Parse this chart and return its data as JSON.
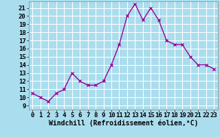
{
  "x": [
    0,
    1,
    2,
    3,
    4,
    5,
    6,
    7,
    8,
    9,
    10,
    11,
    12,
    13,
    14,
    15,
    16,
    17,
    18,
    19,
    20,
    21,
    22,
    23
  ],
  "y": [
    10.5,
    10.0,
    9.5,
    10.5,
    11.0,
    13.0,
    12.0,
    11.5,
    11.5,
    12.0,
    14.0,
    16.5,
    20.0,
    21.5,
    19.5,
    21.0,
    19.5,
    17.0,
    16.5,
    16.5,
    15.0,
    14.0,
    14.0,
    13.5
  ],
  "line_color": "#990099",
  "marker": "x",
  "bg_color": "#aaddee",
  "grid_color": "#ffffff",
  "xlabel": "Windchill (Refroidissement éolien,°C)",
  "xlim": [
    -0.5,
    23.5
  ],
  "ylim": [
    8.5,
    21.8
  ],
  "yticks": [
    9,
    10,
    11,
    12,
    13,
    14,
    15,
    16,
    17,
    18,
    19,
    20,
    21
  ],
  "xticks": [
    0,
    1,
    2,
    3,
    4,
    5,
    6,
    7,
    8,
    9,
    10,
    11,
    12,
    13,
    14,
    15,
    16,
    17,
    18,
    19,
    20,
    21,
    22,
    23
  ],
  "xlabel_fontsize": 7.0,
  "tick_fontsize": 6.5,
  "line_width": 1.0,
  "marker_size": 3.5
}
